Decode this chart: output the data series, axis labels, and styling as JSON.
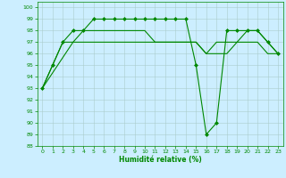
{
  "title": "",
  "xlabel": "Humidité relative (%)",
  "ylabel": "",
  "background_color": "#cceeff",
  "grid_color": "#aacccc",
  "line_color": "#008800",
  "xlim": [
    -0.5,
    23.5
  ],
  "ylim": [
    88,
    100.5
  ],
  "yticks": [
    88,
    89,
    90,
    91,
    92,
    93,
    94,
    95,
    96,
    97,
    98,
    99,
    100
  ],
  "xticks": [
    0,
    1,
    2,
    3,
    4,
    5,
    6,
    7,
    8,
    9,
    10,
    11,
    12,
    13,
    14,
    15,
    16,
    17,
    18,
    19,
    20,
    21,
    22,
    23
  ],
  "series": [
    {
      "x": [
        0,
        1,
        2,
        3,
        4,
        5,
        6,
        7,
        8,
        9,
        10,
        11,
        12,
        13,
        14,
        15,
        16,
        17,
        18,
        19,
        20,
        21,
        22,
        23
      ],
      "y": [
        93,
        95,
        97,
        98,
        98,
        99,
        99,
        99,
        99,
        99,
        99,
        99,
        99,
        99,
        99,
        95,
        89,
        90,
        98,
        98,
        98,
        98,
        97,
        96
      ],
      "marker": "D",
      "markersize": 2.0
    },
    {
      "x": [
        0,
        1,
        2,
        3,
        4,
        5,
        6,
        7,
        8,
        9,
        10,
        11,
        12,
        13,
        14,
        15,
        16,
        17,
        18,
        19,
        20,
        21,
        22,
        23
      ],
      "y": [
        93,
        95,
        97,
        97,
        97,
        97,
        97,
        97,
        97,
        97,
        97,
        97,
        97,
        97,
        97,
        97,
        96,
        97,
        97,
        97,
        97,
        97,
        96,
        96
      ],
      "marker": null,
      "markersize": 0
    },
    {
      "x": [
        0,
        3,
        4,
        5,
        6,
        7,
        8,
        9,
        10,
        11,
        12,
        13,
        14,
        15,
        16,
        17,
        18,
        19,
        20,
        21,
        22,
        23
      ],
      "y": [
        93,
        97,
        98,
        98,
        98,
        98,
        98,
        98,
        98,
        97,
        97,
        97,
        97,
        97,
        96,
        96,
        96,
        97,
        98,
        98,
        97,
        96
      ],
      "marker": null,
      "markersize": 0
    }
  ],
  "xlabel_fontsize": 5.5,
  "tick_labelsize": 4.5,
  "linewidth": 0.8
}
